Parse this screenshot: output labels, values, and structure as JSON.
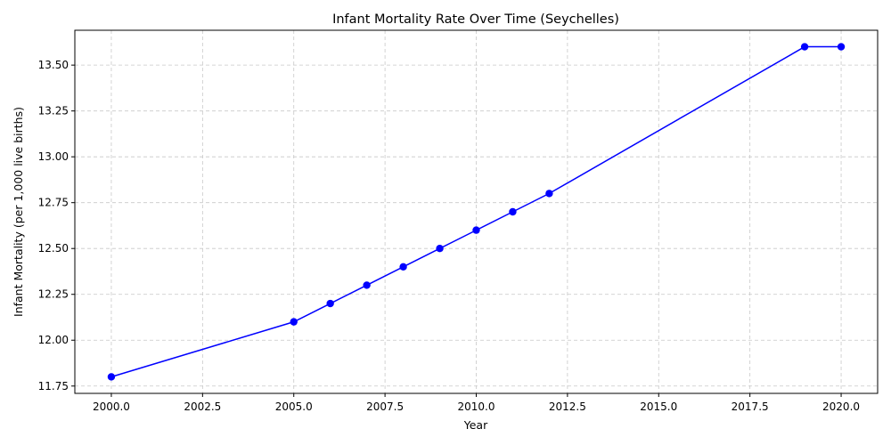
{
  "chart_data": {
    "type": "line",
    "title": "Infant Mortality Rate Over Time (Seychelles)",
    "xlabel": "Year",
    "ylabel": "Infant Mortality (per 1,000 live births)",
    "xlim": [
      1999.0,
      2021.0
    ],
    "ylim": [
      11.71,
      13.69
    ],
    "x_ticks": [
      2000.0,
      2002.5,
      2005.0,
      2007.5,
      2010.0,
      2012.5,
      2015.0,
      2017.5,
      2020.0
    ],
    "x_tick_labels": [
      "2000.0",
      "2002.5",
      "2005.0",
      "2007.5",
      "2010.0",
      "2012.5",
      "2015.0",
      "2017.5",
      "2020.0"
    ],
    "y_ticks": [
      11.75,
      12.0,
      12.25,
      12.5,
      12.75,
      13.0,
      13.25,
      13.5
    ],
    "y_tick_labels": [
      "11.75",
      "12.00",
      "12.25",
      "12.50",
      "12.75",
      "13.00",
      "13.25",
      "13.50"
    ],
    "grid": true,
    "color": "#0000ff",
    "marker": "circle",
    "series": [
      {
        "x": [
          2000,
          2005,
          2006,
          2007,
          2008,
          2009,
          2010,
          2011,
          2012,
          2019,
          2020
        ],
        "values": [
          11.8,
          12.1,
          12.2,
          12.3,
          12.4,
          12.5,
          12.6,
          12.7,
          12.8,
          13.6,
          13.6
        ]
      }
    ]
  }
}
